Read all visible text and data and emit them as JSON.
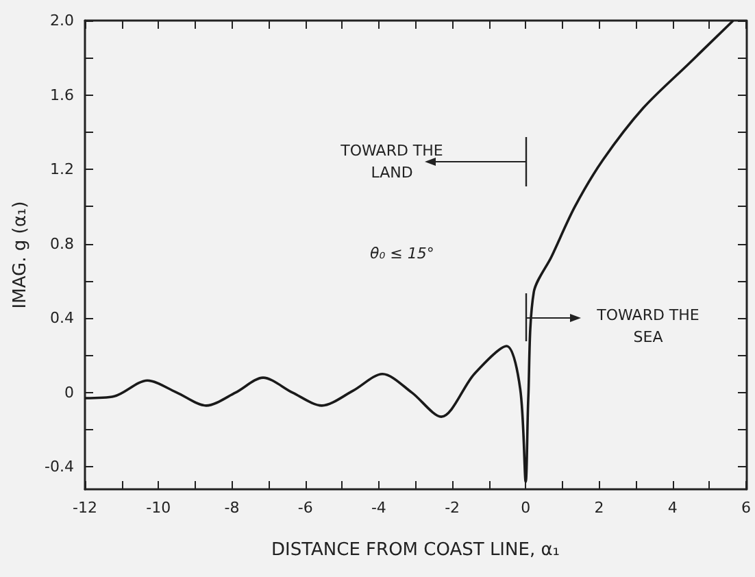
{
  "chart_data": {
    "type": "line",
    "xlabel": "DISTANCE FROM COAST LINE, α₁",
    "ylabel": "IMAG. g (α₁)",
    "annotations": [
      "TOWARD THE\nLAND",
      "TOWARD THE\nSEA",
      "θ₀ ≤ 15°"
    ],
    "series": [
      {
        "color": "#1a1a1a",
        "x": [
          -12,
          -11.2,
          -10.3,
          -9.5,
          -8.7,
          -7.9,
          -7.15,
          -6.35,
          -5.55,
          -4.7,
          -3.9,
          -3.1,
          -2.3,
          -1.4,
          -0.52,
          -0.15,
          0,
          0.07,
          0.22,
          0.7,
          1.34,
          2.1,
          3.2,
          4.45,
          5.65
        ],
        "values": [
          -0.03,
          -0.02,
          0.065,
          0,
          -0.07,
          0,
          0.08,
          0,
          -0.07,
          0.01,
          0.1,
          0,
          -0.13,
          0.1,
          0.25,
          0.02,
          -0.48,
          -0.03,
          0.54,
          0.73,
          1.0,
          1.25,
          1.53,
          1.77,
          2.0
        ]
      }
    ],
    "xlim": [
      -12,
      6
    ],
    "ylim": [
      -0.52,
      2.0
    ],
    "xticks": [
      -12,
      {
        "value": -11,
        "label": null
      },
      -10,
      {
        "value": -9,
        "label": null
      },
      -8,
      {
        "value": -7,
        "label": null
      },
      -6,
      {
        "value": -5,
        "label": null
      },
      -4,
      {
        "value": -3,
        "label": null
      },
      -2,
      {
        "value": -1,
        "label": null
      },
      0,
      {
        "value": 1,
        "label": null
      },
      2,
      {
        "value": 3,
        "label": null
      },
      4,
      {
        "value": 5,
        "label": null
      },
      6
    ],
    "yticks": [
      -0.4,
      {
        "value": -0.2,
        "label": null
      },
      0,
      {
        "value": 0.2,
        "label": null
      },
      0.4,
      {
        "value": 0.6,
        "label": null
      },
      0.8,
      {
        "value": 1.0,
        "label": null
      },
      1.2,
      {
        "value": 1.4,
        "label": null
      },
      1.6,
      {
        "value": 1.8,
        "label": null
      },
      {
        "value": 2,
        "label": "2.0"
      }
    ],
    "grid": false,
    "marker": "none",
    "line_style": "solid"
  }
}
